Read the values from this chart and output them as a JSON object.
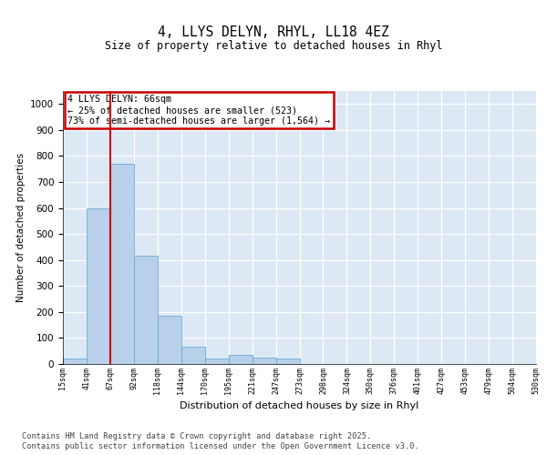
{
  "title_line1": "4, LLYS DELYN, RHYL, LL18 4EZ",
  "title_line2": "Size of property relative to detached houses in Rhyl",
  "xlabel": "Distribution of detached houses by size in Rhyl",
  "ylabel": "Number of detached properties",
  "bar_values": [
    20,
    600,
    770,
    415,
    185,
    65,
    20,
    35,
    25,
    20,
    0,
    0,
    0,
    0,
    0,
    0,
    0,
    0,
    0,
    0
  ],
  "categories": [
    "15sqm",
    "41sqm",
    "67sqm",
    "92sqm",
    "118sqm",
    "144sqm",
    "170sqm",
    "195sqm",
    "221sqm",
    "247sqm",
    "273sqm",
    "298sqm",
    "324sqm",
    "350sqm",
    "376sqm",
    "401sqm",
    "427sqm",
    "453sqm",
    "479sqm",
    "504sqm",
    "530sqm"
  ],
  "bar_color": "#b8d0ea",
  "bar_edge_color": "#6aaad4",
  "bg_color": "#dce9f5",
  "grid_color": "#ffffff",
  "vline_x": 2,
  "vline_color": "#cc0000",
  "annotation_title": "4 LLYS DELYN: 66sqm",
  "annotation_line2": "← 25% of detached houses are smaller (523)",
  "annotation_line3": "73% of semi-detached houses are larger (1,564) →",
  "annotation_box_color": "#cc0000",
  "ylim": [
    0,
    1050
  ],
  "yticks": [
    0,
    100,
    200,
    300,
    400,
    500,
    600,
    700,
    800,
    900,
    1000
  ],
  "footer_line1": "Contains HM Land Registry data © Crown copyright and database right 2025.",
  "footer_line2": "Contains public sector information licensed under the Open Government Licence v3.0."
}
